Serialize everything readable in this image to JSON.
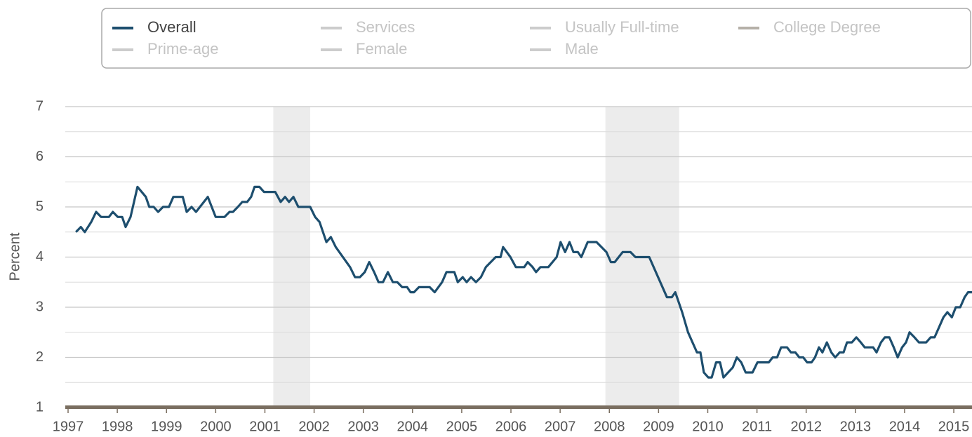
{
  "chart_data": {
    "type": "line",
    "ylabel": "Percent",
    "xlim": [
      1997,
      2015.37
    ],
    "xticks": [
      1997,
      1998,
      1999,
      2000,
      2001,
      2002,
      2003,
      2004,
      2005,
      2006,
      2007,
      2008,
      2009,
      2010,
      2011,
      2012,
      2013,
      2014,
      2015
    ],
    "ylim": [
      1,
      7
    ],
    "yticks": [
      1,
      2,
      3,
      4,
      5,
      6,
      7
    ],
    "yminorticks": [
      1.5,
      2.5,
      3.5,
      4.5,
      5.5,
      6.5
    ],
    "grid": true,
    "legend": "top",
    "recessions": [
      [
        2001.17,
        2001.92
      ],
      [
        2007.92,
        2009.42
      ]
    ],
    "recession_color": "#ececec",
    "x": [
      1997.16,
      1997.26,
      1997.34,
      1997.47,
      1997.57,
      1997.67,
      1997.83,
      1997.91,
      1998.01,
      1998.1,
      1998.17,
      1998.27,
      1998.41,
      1998.58,
      1998.65,
      1998.74,
      1998.83,
      1998.93,
      1999.05,
      1999.14,
      1999.33,
      1999.41,
      1999.51,
      1999.6,
      1999.84,
      2000.0,
      2000.18,
      2000.28,
      2000.35,
      2000.45,
      2000.54,
      2000.64,
      2000.72,
      2000.79,
      2000.89,
      2000.98,
      2001.21,
      2001.32,
      2001.41,
      2001.49,
      2001.58,
      2001.68,
      2001.92,
      2002.02,
      2002.11,
      2002.25,
      2002.34,
      2002.44,
      2002.73,
      2002.83,
      2002.93,
      2003.03,
      2003.12,
      2003.22,
      2003.31,
      2003.4,
      2003.5,
      2003.6,
      2003.69,
      2003.79,
      2003.89,
      2003.96,
      2004.03,
      2004.13,
      2004.35,
      2004.45,
      2004.6,
      2004.69,
      2004.85,
      2004.92,
      2005.02,
      2005.1,
      2005.19,
      2005.29,
      2005.39,
      2005.49,
      2005.59,
      2005.69,
      2005.79,
      2005.84,
      2005.99,
      2006.1,
      2006.27,
      2006.34,
      2006.44,
      2006.51,
      2006.6,
      2006.76,
      2006.93,
      2007.01,
      2007.1,
      2007.19,
      2007.27,
      2007.36,
      2007.43,
      2007.56,
      2007.74,
      2007.94,
      2008.03,
      2008.11,
      2008.27,
      2008.43,
      2008.53,
      2008.81,
      2009.17,
      2009.27,
      2009.34,
      2009.48,
      2009.6,
      2009.78,
      2009.85,
      2009.92,
      2010.01,
      2010.08,
      2010.17,
      2010.25,
      2010.32,
      2010.51,
      2010.59,
      2010.68,
      2010.77,
      2010.91,
      2011.01,
      2011.24,
      2011.32,
      2011.41,
      2011.49,
      2011.61,
      2011.69,
      2011.78,
      2011.86,
      2011.94,
      2012.02,
      2012.11,
      2012.18,
      2012.26,
      2012.33,
      2012.42,
      2012.51,
      2012.59,
      2012.68,
      2012.76,
      2012.83,
      2012.93,
      2013.02,
      2013.11,
      2013.19,
      2013.36,
      2013.43,
      2013.52,
      2013.6,
      2013.69,
      2013.78,
      2013.86,
      2013.95,
      2014.03,
      2014.1,
      2014.2,
      2014.29,
      2014.44,
      2014.53,
      2014.61,
      2014.7,
      2014.79,
      2014.87,
      2014.96,
      2015.04,
      2015.13,
      2015.22,
      2015.29,
      2015.37
    ],
    "series": [
      {
        "name": "Overall",
        "color": "#1d4e6e",
        "visible": true,
        "values": [
          4.5,
          4.6,
          4.5,
          4.7,
          4.9,
          4.8,
          4.8,
          4.9,
          4.8,
          4.8,
          4.6,
          4.8,
          5.4,
          5.2,
          5.0,
          5.0,
          4.9,
          5.0,
          5.0,
          5.2,
          5.2,
          4.9,
          5.0,
          4.9,
          5.2,
          4.8,
          4.8,
          4.9,
          4.9,
          5.0,
          5.1,
          5.1,
          5.2,
          5.4,
          5.4,
          5.3,
          5.3,
          5.1,
          5.2,
          5.1,
          5.2,
          5.0,
          5.0,
          4.8,
          4.7,
          4.3,
          4.4,
          4.2,
          3.8,
          3.6,
          3.6,
          3.7,
          3.9,
          3.7,
          3.5,
          3.5,
          3.7,
          3.5,
          3.5,
          3.4,
          3.4,
          3.3,
          3.3,
          3.4,
          3.4,
          3.3,
          3.5,
          3.7,
          3.7,
          3.5,
          3.6,
          3.5,
          3.6,
          3.5,
          3.6,
          3.8,
          3.9,
          4.0,
          4.0,
          4.2,
          4.0,
          3.8,
          3.8,
          3.9,
          3.8,
          3.7,
          3.8,
          3.8,
          4.0,
          4.3,
          4.1,
          4.3,
          4.1,
          4.1,
          4.0,
          4.3,
          4.3,
          4.1,
          3.9,
          3.9,
          4.1,
          4.1,
          4.0,
          4.0,
          3.2,
          3.2,
          3.3,
          2.9,
          2.5,
          2.1,
          2.1,
          1.7,
          1.6,
          1.6,
          1.9,
          1.9,
          1.6,
          1.8,
          2.0,
          1.9,
          1.7,
          1.7,
          1.9,
          1.9,
          2.0,
          2.0,
          2.2,
          2.2,
          2.1,
          2.1,
          2.0,
          2.0,
          1.9,
          1.9,
          2.0,
          2.2,
          2.1,
          2.3,
          2.1,
          2.0,
          2.1,
          2.1,
          2.3,
          2.3,
          2.4,
          2.3,
          2.2,
          2.2,
          2.1,
          2.3,
          2.4,
          2.4,
          2.2,
          2.0,
          2.2,
          2.3,
          2.5,
          2.4,
          2.3,
          2.3,
          2.4,
          2.4,
          2.6,
          2.8,
          2.9,
          2.8,
          3.0,
          3.0,
          3.2,
          3.3,
          3.3
        ]
      },
      {
        "name": "Services",
        "color": "#cccccc",
        "visible": false
      },
      {
        "name": "Usually Full-time",
        "color": "#cccccc",
        "visible": false
      },
      {
        "name": "College Degree",
        "color": "#b5b0a8",
        "visible": false
      },
      {
        "name": "Prime-age",
        "color": "#cccccc",
        "visible": false
      },
      {
        "name": "Female",
        "color": "#cccccc",
        "visible": false
      },
      {
        "name": "Male",
        "color": "#cccccc",
        "visible": false
      }
    ]
  }
}
